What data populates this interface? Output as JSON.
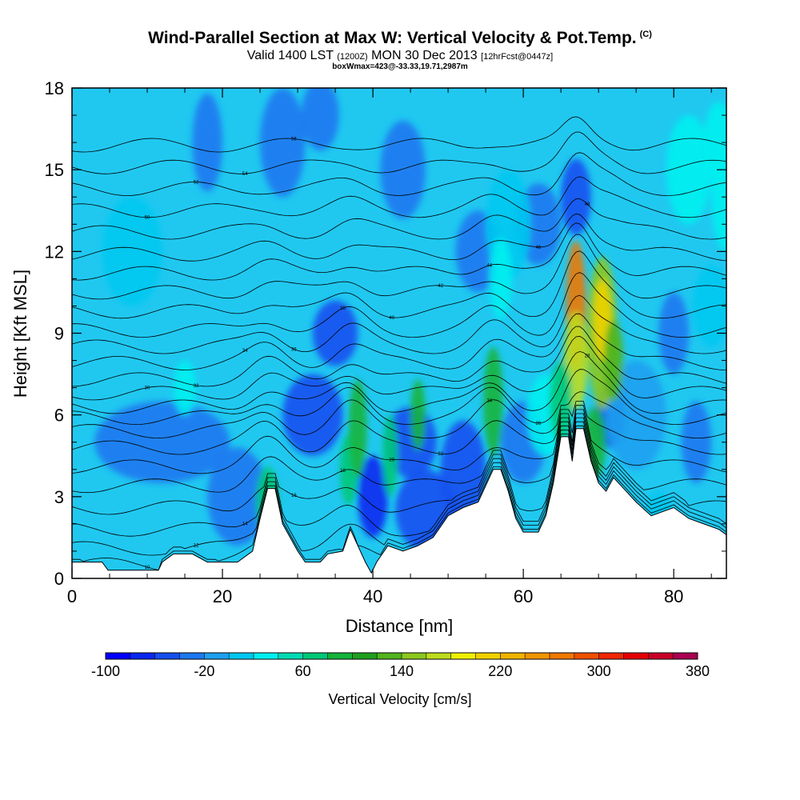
{
  "header": {
    "title": "Wind-Parallel Section at Max W: Vertical Velocity & Pot.Temp.",
    "copyright": "(C)",
    "valid_prefix": "Valid 1400 LST",
    "valid_utc": "(1200Z)",
    "valid_date": "MON 30 Dec 2013",
    "forecast": "[12hrFcst@0447z]",
    "box_info": "boxWmax=423@-33.33,19.71,2987m"
  },
  "chart_data": {
    "type": "heatmap",
    "xlabel": "Distance [nm]",
    "ylabel": "Height [Kft MSL]",
    "xlim": [
      0,
      87
    ],
    "ylim": [
      0,
      18
    ],
    "x_ticks": [
      0,
      20,
      40,
      60,
      80
    ],
    "y_ticks": [
      0,
      3,
      6,
      9,
      12,
      15,
      18
    ],
    "colorbar": {
      "label": "Vertical Velocity [cm/s]",
      "ticks": [
        "-100",
        "-20",
        "60",
        "140",
        "220",
        "300",
        "380"
      ],
      "colors": [
        "#0000ff",
        "#0a28f0",
        "#1450f0",
        "#1e78f0",
        "#1ea0f0",
        "#00c8f0",
        "#00f0f0",
        "#00dcb4",
        "#00c878",
        "#14b43c",
        "#1ea01e",
        "#50b41e",
        "#8cc81e",
        "#bedc1e",
        "#f0f000",
        "#f0d200",
        "#f0b400",
        "#f09600",
        "#f07800",
        "#f05000",
        "#f02800",
        "#e60000",
        "#c80028",
        "#aa0050"
      ],
      "min": -100,
      "max": 440
    },
    "terrain_kft": [
      [
        0,
        0.6
      ],
      [
        4,
        0.6
      ],
      [
        4.8,
        0.3
      ],
      [
        11.5,
        0.3
      ],
      [
        12,
        0.6
      ],
      [
        13.5,
        0.9
      ],
      [
        16,
        0.9
      ],
      [
        18,
        0.6
      ],
      [
        22,
        0.6
      ],
      [
        24,
        1
      ],
      [
        25,
        2.2
      ],
      [
        26,
        3.3
      ],
      [
        27,
        3.3
      ],
      [
        28,
        2
      ],
      [
        29,
        1.5
      ],
      [
        30,
        1
      ],
      [
        31,
        0.6
      ],
      [
        33,
        0.6
      ],
      [
        34,
        0.9
      ],
      [
        36,
        1
      ],
      [
        37,
        1.8
      ],
      [
        38,
        1.2
      ],
      [
        39,
        0.6
      ],
      [
        39.8,
        0.2
      ],
      [
        40.5,
        0.6
      ],
      [
        42,
        1.2
      ],
      [
        44,
        1
      ],
      [
        46,
        1.2
      ],
      [
        48,
        1.5
      ],
      [
        50,
        2.3
      ],
      [
        52,
        2.6
      ],
      [
        54,
        2.8
      ],
      [
        56,
        4
      ],
      [
        57,
        4
      ],
      [
        58,
        3.2
      ],
      [
        59,
        2.2
      ],
      [
        60,
        1.7
      ],
      [
        62,
        1.7
      ],
      [
        63,
        2.3
      ],
      [
        64,
        3.5
      ],
      [
        65,
        5.2
      ],
      [
        66,
        5.2
      ],
      [
        66.5,
        4.3
      ],
      [
        67,
        5.5
      ],
      [
        68,
        5.5
      ],
      [
        69,
        4.3
      ],
      [
        70,
        3.5
      ],
      [
        71,
        3.2
      ],
      [
        72,
        3.7
      ],
      [
        73,
        3.4
      ],
      [
        75,
        2.8
      ],
      [
        77,
        2.3
      ],
      [
        80,
        2.6
      ],
      [
        82,
        2.2
      ],
      [
        84,
        2
      ],
      [
        86,
        1.8
      ],
      [
        87,
        1.6
      ]
    ],
    "theta_isentropes": {
      "labels": [
        "10",
        "12",
        "14",
        "16",
        "18",
        "20",
        "22",
        "24",
        "26",
        "28",
        "30",
        "32",
        "34",
        "36",
        "38",
        "40",
        "42",
        "44",
        "46",
        "48",
        "50",
        "52",
        "54",
        "56"
      ],
      "base_heights_kft": [
        0.5,
        1.1,
        1.8,
        2.6,
        3.4,
        4.1,
        4.8,
        5.4,
        5.9,
        6.3,
        6.8,
        7.3,
        7.9,
        8.5,
        9.1,
        9.8,
        10.5,
        11.2,
        11.9,
        12.7,
        13.5,
        14.3,
        15.1,
        15.9
      ]
    },
    "updraft_cores": [
      {
        "x": 67,
        "y": 9.2,
        "w_cms": 423
      },
      {
        "x": 70.5,
        "y": 9,
        "w_cms": 300
      },
      {
        "x": 38,
        "y": 5,
        "w_cms": 140
      },
      {
        "x": 56,
        "y": 6.5,
        "w_cms": 200
      }
    ],
    "downdraft_cores": [
      {
        "x": 67,
        "y": 14,
        "w_cms": -100
      },
      {
        "x": 71.5,
        "y": 6,
        "w_cms": -90
      },
      {
        "x": 40,
        "y": 3,
        "w_cms": -70
      }
    ]
  }
}
